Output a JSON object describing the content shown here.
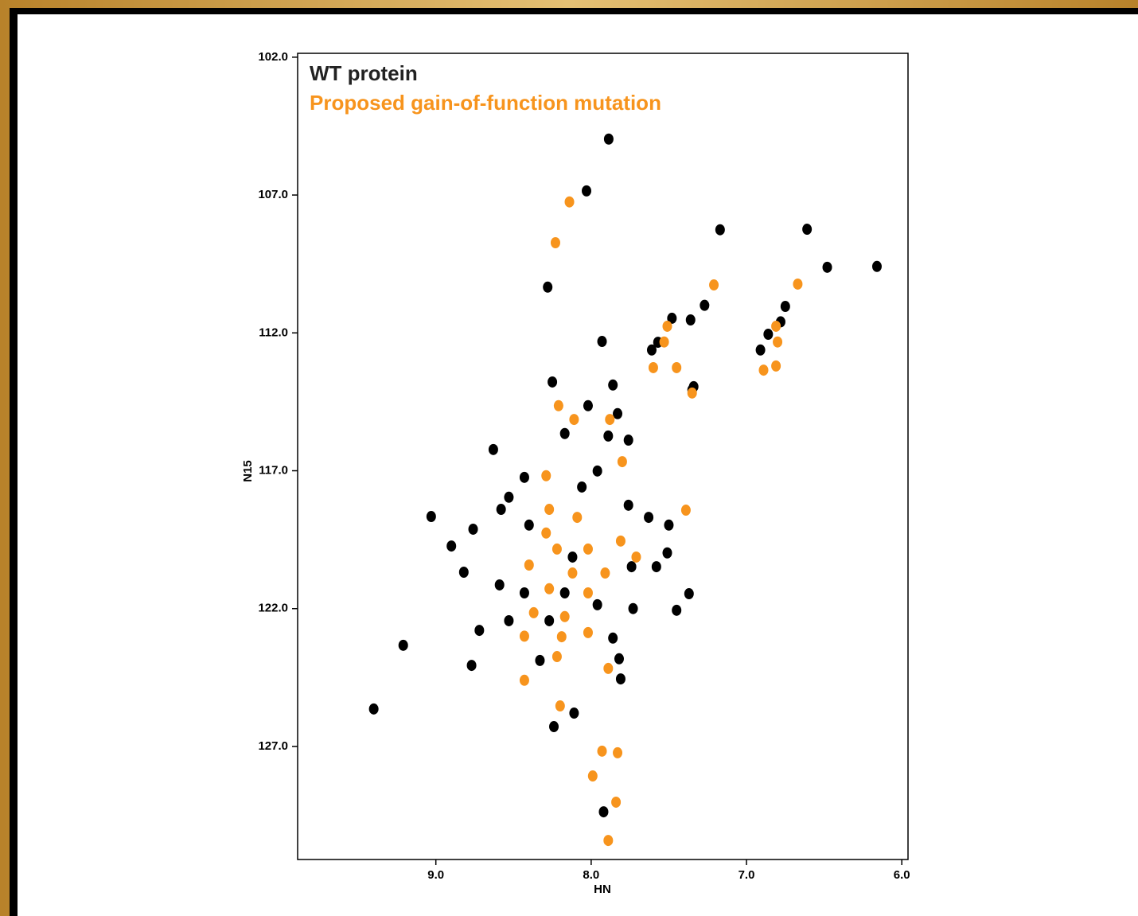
{
  "chart_data": {
    "type": "scatter",
    "xlabel": "HN",
    "ylabel": "N15",
    "xlim": [
      9.89,
      5.96
    ],
    "ylim": [
      101.86,
      131.1
    ],
    "xticks": [
      {
        "value": 9,
        "label": "9.0"
      },
      {
        "value": 8,
        "label": "8.0"
      },
      {
        "value": 7,
        "label": "7.0"
      },
      {
        "value": 6,
        "label": "6.0"
      }
    ],
    "yticks": [
      {
        "value": 102,
        "label": "102.0"
      },
      {
        "value": 107,
        "label": "107.0"
      },
      {
        "value": 112,
        "label": "112.0"
      },
      {
        "value": 117,
        "label": "117.0"
      },
      {
        "value": 122,
        "label": "122.0"
      },
      {
        "value": 127,
        "label": "127.0"
      }
    ],
    "legend": "upper left",
    "series": [
      {
        "name": "WT protein",
        "color": "#000000",
        "x": [
          7.887,
          8.03,
          7.17,
          6.61,
          6.48,
          6.16,
          8.28,
          7.27,
          7.36,
          7.48,
          6.75,
          6.91,
          7.93,
          7.61,
          7.86,
          7.34,
          8.25,
          8.02,
          7.83,
          8.17,
          7.89,
          7.76,
          8.63,
          7.96,
          8.43,
          8.06,
          8.53,
          7.76,
          9.03,
          8.76,
          8.58,
          7.63,
          7.5,
          8.9,
          8.82,
          7.51,
          7.58,
          8.59,
          7.74,
          7.37,
          7.45,
          7.73,
          8.72,
          9.21,
          7.86,
          8.77,
          7.82,
          7.81,
          8.33,
          9.4,
          8.11,
          8.24,
          7.92,
          8.4,
          8.12,
          8.17,
          8.43,
          8.27,
          8.53,
          7.96,
          6.86,
          6.78,
          7.57,
          7.35
        ],
        "values": [
          104.97,
          106.85,
          108.26,
          108.24,
          109.62,
          109.59,
          110.34,
          111.0,
          111.53,
          111.47,
          111.04,
          112.62,
          112.31,
          112.62,
          113.89,
          113.95,
          113.78,
          114.64,
          114.93,
          115.65,
          115.74,
          115.89,
          116.23,
          117.01,
          117.24,
          117.59,
          117.96,
          118.25,
          118.66,
          119.12,
          118.4,
          118.69,
          118.97,
          119.73,
          120.68,
          119.98,
          120.48,
          121.14,
          120.48,
          121.46,
          122.06,
          122.0,
          122.79,
          123.33,
          123.07,
          124.06,
          123.82,
          124.55,
          123.88,
          125.64,
          125.79,
          126.28,
          129.37,
          118.97,
          120.13,
          121.43,
          121.43,
          122.44,
          122.44,
          121.86,
          112.05,
          111.6,
          112.34,
          114.07
        ]
      },
      {
        "name": "Proposed gain-of-function mutation",
        "color": "#f7941d",
        "x": [
          8.23,
          8.14,
          7.21,
          6.67,
          7.51,
          7.53,
          7.6,
          7.45,
          6.81,
          6.8,
          6.89,
          6.81,
          7.35,
          8.21,
          8.11,
          7.88,
          8.29,
          7.8,
          8.27,
          8.09,
          8.29,
          8.22,
          8.02,
          8.4,
          8.12,
          7.91,
          8.27,
          8.02,
          8.37,
          8.17,
          8.43,
          8.19,
          8.02,
          8.22,
          7.89,
          8.43,
          8.2,
          7.93,
          7.83,
          7.99,
          7.84,
          7.89,
          7.39,
          7.81,
          7.71
        ],
        "values": [
          108.73,
          107.25,
          110.26,
          110.23,
          111.76,
          112.33,
          113.26,
          113.26,
          111.76,
          112.33,
          113.35,
          113.2,
          114.18,
          114.64,
          115.14,
          115.14,
          117.18,
          116.67,
          118.4,
          118.69,
          119.26,
          119.84,
          119.84,
          120.42,
          120.71,
          120.71,
          121.28,
          121.43,
          122.15,
          122.29,
          123.0,
          123.02,
          122.87,
          123.74,
          124.17,
          124.6,
          125.53,
          127.17,
          127.23,
          128.07,
          129.02,
          130.41,
          118.43,
          119.55,
          120.13
        ]
      }
    ]
  }
}
